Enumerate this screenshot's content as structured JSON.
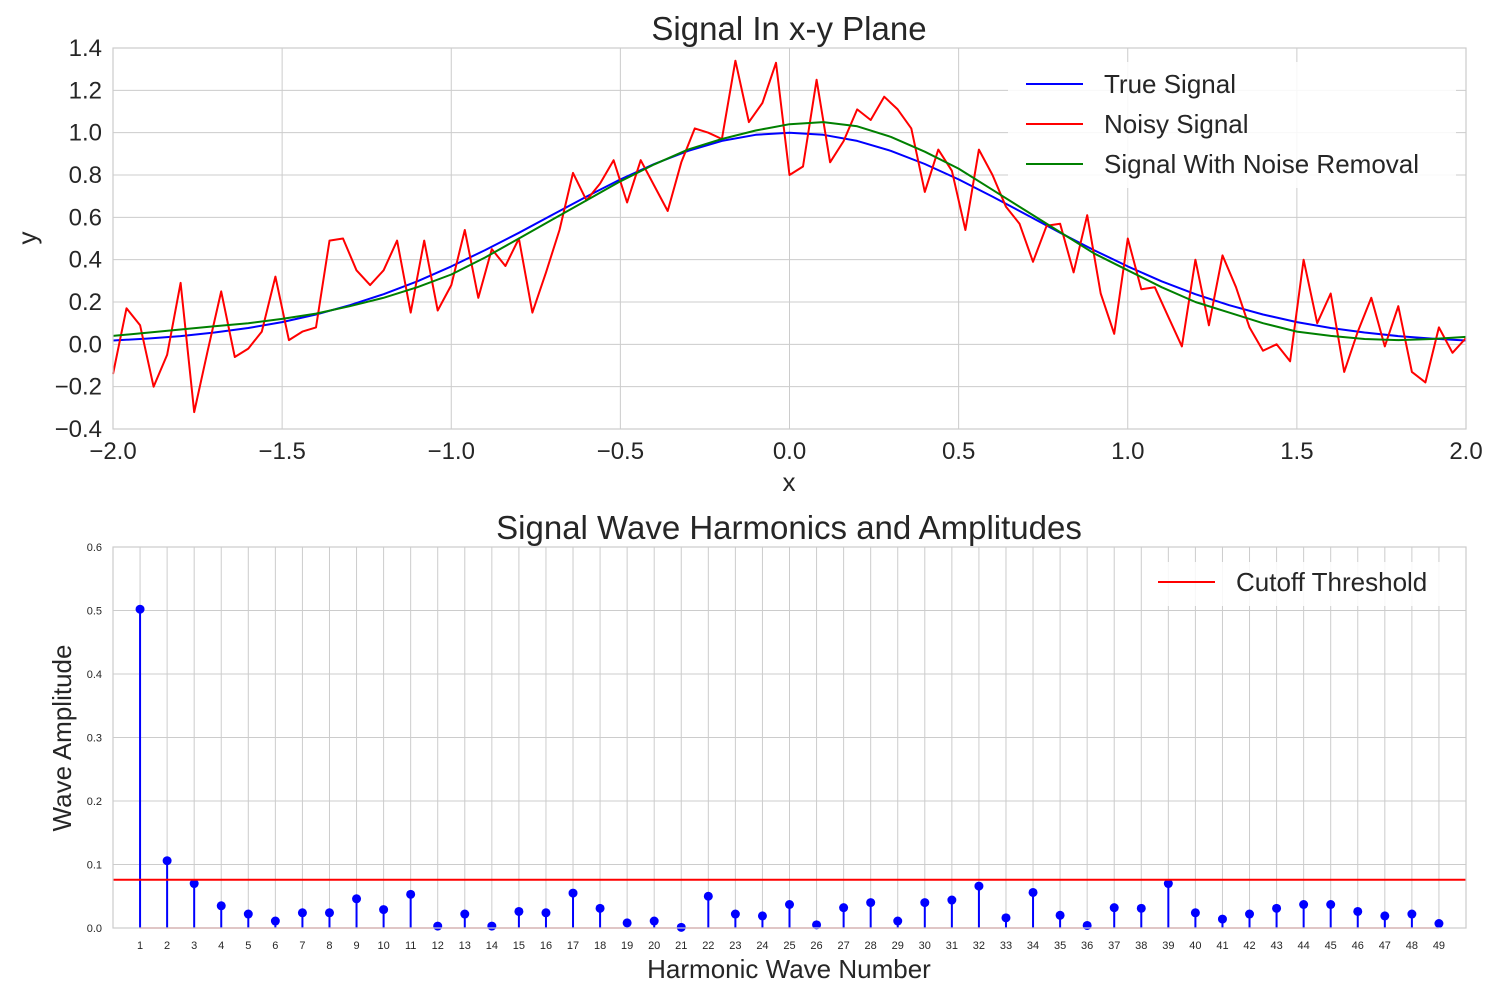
{
  "chart_data": [
    {
      "type": "line",
      "title": "Signal In x-y Plane",
      "xlabel": "x",
      "ylabel": "y",
      "xlim": [
        -2.0,
        2.0
      ],
      "ylim": [
        -0.4,
        1.4
      ],
      "xticks": [
        -2.0,
        -1.5,
        -1.0,
        -0.5,
        0.0,
        0.5,
        1.0,
        1.5,
        2.0
      ],
      "xtick_labels": [
        "−2.0",
        "−1.5",
        "−1.0",
        "−0.5",
        "0.0",
        "0.5",
        "1.0",
        "1.5",
        "2.0"
      ],
      "yticks": [
        -0.4,
        -0.2,
        0.0,
        0.2,
        0.4,
        0.6,
        0.8,
        1.0,
        1.2,
        1.4
      ],
      "ytick_labels": [
        "−0.4",
        "−0.2",
        "0.0",
        "0.2",
        "0.4",
        "0.6",
        "0.8",
        "1.0",
        "1.2",
        "1.4"
      ],
      "grid": true,
      "legend_position": "top-right",
      "series": [
        {
          "name": "True Signal",
          "color": "#0000ff",
          "x": [
            -2.0,
            -1.9,
            -1.8,
            -1.7,
            -1.6,
            -1.5,
            -1.4,
            -1.3,
            -1.2,
            -1.1,
            -1.0,
            -0.9,
            -0.8,
            -0.7,
            -0.6,
            -0.5,
            -0.4,
            -0.3,
            -0.2,
            -0.1,
            0.0,
            0.1,
            0.2,
            0.3,
            0.4,
            0.5,
            0.6,
            0.7,
            0.8,
            0.9,
            1.0,
            1.1,
            1.2,
            1.3,
            1.4,
            1.5,
            1.6,
            1.7,
            1.8,
            1.9,
            2.0
          ],
          "y": [
            0.018,
            0.027,
            0.039,
            0.056,
            0.077,
            0.105,
            0.141,
            0.185,
            0.237,
            0.298,
            0.368,
            0.445,
            0.527,
            0.613,
            0.698,
            0.779,
            0.852,
            0.914,
            0.961,
            0.99,
            1.0,
            0.99,
            0.961,
            0.914,
            0.852,
            0.779,
            0.698,
            0.613,
            0.527,
            0.445,
            0.368,
            0.298,
            0.237,
            0.185,
            0.141,
            0.105,
            0.077,
            0.056,
            0.039,
            0.027,
            0.018
          ]
        },
        {
          "name": "Noisy Signal",
          "color": "#ff0000",
          "x": [
            -2.0,
            -1.96,
            -1.92,
            -1.88,
            -1.84,
            -1.8,
            -1.76,
            -1.72,
            -1.68,
            -1.64,
            -1.6,
            -1.56,
            -1.52,
            -1.48,
            -1.44,
            -1.4,
            -1.36,
            -1.32,
            -1.28,
            -1.24,
            -1.2,
            -1.16,
            -1.12,
            -1.08,
            -1.04,
            -1.0,
            -0.96,
            -0.92,
            -0.88,
            -0.84,
            -0.8,
            -0.76,
            -0.72,
            -0.68,
            -0.64,
            -0.6,
            -0.56,
            -0.52,
            -0.48,
            -0.44,
            -0.4,
            -0.36,
            -0.32,
            -0.28,
            -0.24,
            -0.2,
            -0.16,
            -0.12,
            -0.08,
            -0.04,
            0.0,
            0.04,
            0.08,
            0.12,
            0.16,
            0.2,
            0.24,
            0.28,
            0.32,
            0.36,
            0.4,
            0.44,
            0.48,
            0.52,
            0.56,
            0.6,
            0.64,
            0.68,
            0.72,
            0.76,
            0.8,
            0.84,
            0.88,
            0.92,
            0.96,
            1.0,
            1.04,
            1.08,
            1.12,
            1.16,
            1.2,
            1.24,
            1.28,
            1.32,
            1.36,
            1.4,
            1.44,
            1.48,
            1.52,
            1.56,
            1.6,
            1.64,
            1.68,
            1.72,
            1.76,
            1.8,
            1.84,
            1.88,
            1.92,
            1.96,
            2.0
          ],
          "y": [
            -0.14,
            0.17,
            0.09,
            -0.2,
            -0.05,
            0.29,
            -0.32,
            -0.03,
            0.25,
            -0.06,
            -0.02,
            0.06,
            0.32,
            0.02,
            0.06,
            0.08,
            0.49,
            0.5,
            0.35,
            0.28,
            0.35,
            0.49,
            0.15,
            0.49,
            0.16,
            0.28,
            0.54,
            0.22,
            0.45,
            0.37,
            0.5,
            0.15,
            0.34,
            0.54,
            0.81,
            0.68,
            0.76,
            0.87,
            0.67,
            0.87,
            0.75,
            0.63,
            0.86,
            1.02,
            1.0,
            0.97,
            1.34,
            1.05,
            1.14,
            1.33,
            0.8,
            0.84,
            1.25,
            0.86,
            0.96,
            1.11,
            1.06,
            1.17,
            1.11,
            1.02,
            0.72,
            0.92,
            0.82,
            0.54,
            0.92,
            0.8,
            0.65,
            0.57,
            0.39,
            0.56,
            0.57,
            0.34,
            0.61,
            0.24,
            0.05,
            0.5,
            0.26,
            0.27,
            0.13,
            -0.01,
            0.4,
            0.09,
            0.42,
            0.27,
            0.08,
            -0.03,
            0.0,
            -0.08,
            0.4,
            0.1,
            0.24,
            -0.13,
            0.06,
            0.22,
            -0.01,
            0.18,
            -0.13,
            -0.18,
            0.08,
            -0.04,
            0.03
          ]
        },
        {
          "name": "Signal With Noise Removal",
          "color": "#008000",
          "x": [
            -2.0,
            -1.9,
            -1.8,
            -1.7,
            -1.6,
            -1.5,
            -1.4,
            -1.3,
            -1.2,
            -1.1,
            -1.0,
            -0.9,
            -0.8,
            -0.7,
            -0.6,
            -0.5,
            -0.4,
            -0.3,
            -0.2,
            -0.1,
            0.0,
            0.1,
            0.2,
            0.3,
            0.4,
            0.5,
            0.6,
            0.7,
            0.8,
            0.9,
            1.0,
            1.1,
            1.2,
            1.3,
            1.4,
            1.5,
            1.6,
            1.7,
            1.8,
            1.9,
            2.0
          ],
          "y": [
            0.04,
            0.055,
            0.07,
            0.085,
            0.1,
            0.12,
            0.145,
            0.18,
            0.22,
            0.27,
            0.33,
            0.41,
            0.5,
            0.59,
            0.68,
            0.77,
            0.85,
            0.92,
            0.97,
            1.01,
            1.04,
            1.05,
            1.03,
            0.98,
            0.91,
            0.83,
            0.73,
            0.63,
            0.53,
            0.43,
            0.35,
            0.27,
            0.2,
            0.15,
            0.1,
            0.06,
            0.04,
            0.025,
            0.02,
            0.025,
            0.035
          ]
        }
      ]
    },
    {
      "type": "stem",
      "title": "Signal Wave Harmonics and Amplitudes",
      "xlabel": "Harmonic Wave Number",
      "ylabel": "Wave Amplitude",
      "xlim": [
        0,
        50
      ],
      "ylim": [
        0.0,
        0.6
      ],
      "yticks": [
        0.0,
        0.1,
        0.2,
        0.3,
        0.4,
        0.5,
        0.6
      ],
      "ytick_labels": [
        "0.0",
        "0.1",
        "0.2",
        "0.3",
        "0.4",
        "0.5",
        "0.6"
      ],
      "grid": true,
      "legend_position": "top-right",
      "stem_color": "#0000ff",
      "harmonics": [
        1,
        2,
        3,
        4,
        5,
        6,
        7,
        8,
        9,
        10,
        11,
        12,
        13,
        14,
        15,
        16,
        17,
        18,
        19,
        20,
        21,
        22,
        23,
        24,
        25,
        26,
        27,
        28,
        29,
        30,
        31,
        32,
        33,
        34,
        35,
        36,
        37,
        38,
        39,
        40,
        41,
        42,
        43,
        44,
        45,
        46,
        47,
        48,
        49
      ],
      "harmonic_labels": [
        "1",
        "2",
        "3",
        "4",
        "5",
        "6",
        "7",
        "8",
        "9",
        "10",
        "11",
        "12",
        "13",
        "14",
        "15",
        "16",
        "17",
        "18",
        "19",
        "20",
        "21",
        "22",
        "23",
        "24",
        "25",
        "26",
        "27",
        "28",
        "29",
        "30",
        "31",
        "32",
        "33",
        "34",
        "35",
        "36",
        "37",
        "38",
        "39",
        "40",
        "41",
        "42",
        "43",
        "44",
        "45",
        "46",
        "47",
        "48",
        "49"
      ],
      "amplitudes": [
        0.502,
        0.106,
        0.07,
        0.035,
        0.022,
        0.011,
        0.024,
        0.024,
        0.046,
        0.029,
        0.053,
        0.003,
        0.022,
        0.003,
        0.026,
        0.024,
        0.055,
        0.031,
        0.008,
        0.011,
        0.001,
        0.05,
        0.022,
        0.019,
        0.037,
        0.005,
        0.032,
        0.04,
        0.011,
        0.04,
        0.044,
        0.066,
        0.016,
        0.056,
        0.02,
        0.004,
        0.032,
        0.031,
        0.07,
        0.024,
        0.014,
        0.022,
        0.031,
        0.037,
        0.037,
        0.026,
        0.019,
        0.022,
        0.007
      ],
      "threshold": {
        "name": "Cutoff Threshold",
        "value": 0.076,
        "color": "#ff0000"
      }
    }
  ]
}
